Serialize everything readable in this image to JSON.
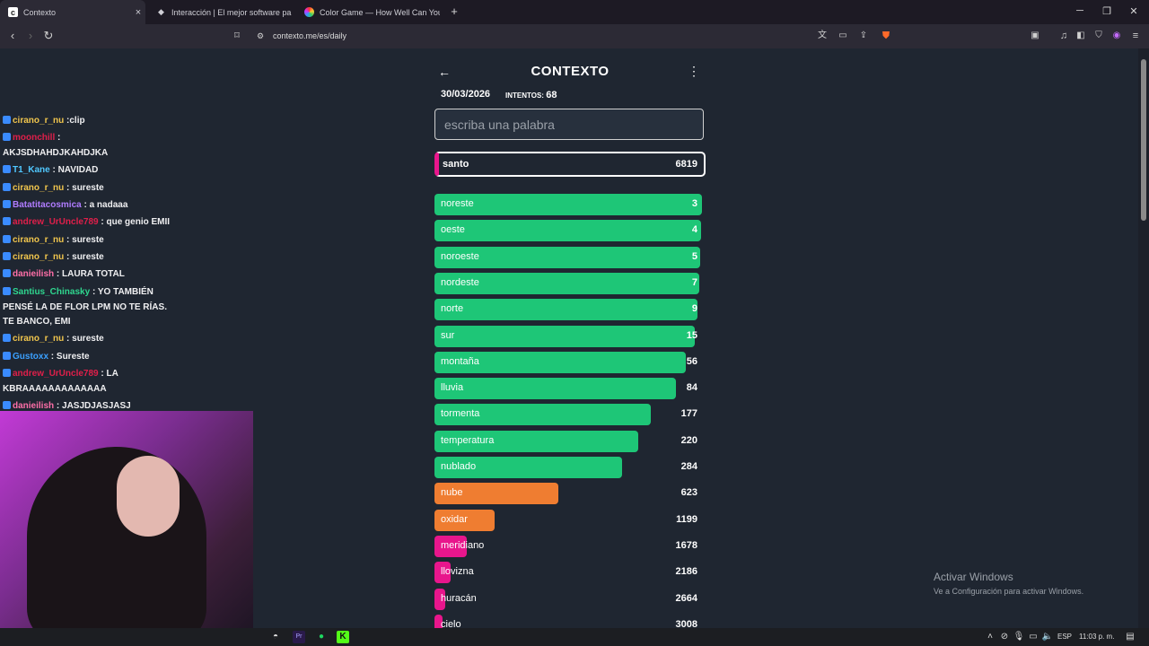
{
  "browser": {
    "tabs": [
      {
        "title": "Contexto",
        "icon": "contexto-favicon"
      },
      {
        "title": "Interacción | El mejor software pa",
        "icon": "interaction-favicon"
      },
      {
        "title": "Color Game — How Well Can You Re",
        "icon": "colorgame-favicon"
      }
    ],
    "new_tab": "+",
    "url": "contexto.me/es/daily",
    "window": {
      "minimize": "─",
      "restore": "❐",
      "close": "✕"
    }
  },
  "chat": {
    "messages": [
      {
        "user": "cirano_r_nu",
        "color": "#f0c54d",
        "text": ":clip"
      },
      {
        "user": "moonchill",
        "color": "#e01f4a",
        "text": ":"
      },
      {
        "user": "",
        "color": "#ffffff",
        "text": "AKJSDHAHDJKAHDJKA"
      },
      {
        "user": "T1_Kane",
        "color": "#50c8ff",
        "text": ": NAVIDAD"
      },
      {
        "user": "cirano_r_nu",
        "color": "#f0c54d",
        "text": ": sureste"
      },
      {
        "user": "Batatitacosmica",
        "color": "#b07cff",
        "text": ": a nadaaa"
      },
      {
        "user": "andrew_UrUncle789",
        "color": "#e01f4a",
        "text": ": que genio EMII"
      },
      {
        "user": "cirano_r_nu",
        "color": "#f0c54d",
        "text": ": sureste"
      },
      {
        "user": "cirano_r_nu",
        "color": "#f0c54d",
        "text": ": sureste"
      },
      {
        "user": "danieilish",
        "color": "#ff6fa8",
        "text": ": LAURA TOTAL"
      },
      {
        "user": "Santius_Chinasky",
        "color": "#2fd68f",
        "text": ": YO TAMBIÉN"
      },
      {
        "user": "",
        "color": "#ffffff",
        "text": "PENSÉ LA DE FLOR LPM NO TE RÍAS."
      },
      {
        "user": "",
        "color": "#ffffff",
        "text": "TE BANCO, EMI"
      },
      {
        "user": "cirano_r_nu",
        "color": "#f0c54d",
        "text": ": sureste"
      },
      {
        "user": "Gustoxx",
        "color": "#3ba0ff",
        "text": ": Sureste"
      },
      {
        "user": "andrew_UrUncle789",
        "color": "#e01f4a",
        "text": ": LA"
      },
      {
        "user": "",
        "color": "#ffffff",
        "text": "KBRAAAAAAAAAAAAA"
      },
      {
        "user": "danieilish",
        "color": "#ff6fa8",
        "text": ": JASJDJASJASJ"
      }
    ]
  },
  "game": {
    "title": "CONTEXTO",
    "back_icon": "←",
    "menu_icon": "⋮",
    "date": "30/03/2026",
    "tries_label": "INTENTOS:",
    "tries": "68",
    "input_placeholder": "escriba una palabra",
    "current": {
      "word": "santo",
      "rank": "6819"
    },
    "guesses": [
      {
        "word": "noreste",
        "rank": "3",
        "score": 0.995,
        "color": "#1ec677"
      },
      {
        "word": "oeste",
        "rank": "4",
        "score": 0.993,
        "color": "#1ec677"
      },
      {
        "word": "noroeste",
        "rank": "5",
        "score": 0.99,
        "color": "#1ec677"
      },
      {
        "word": "nordeste",
        "rank": "7",
        "score": 0.985,
        "color": "#1ec677"
      },
      {
        "word": "norte",
        "rank": "9",
        "score": 0.98,
        "color": "#1ec677"
      },
      {
        "word": "sur",
        "rank": "15",
        "score": 0.97,
        "color": "#1ec677"
      },
      {
        "word": "montaña",
        "rank": "56",
        "score": 0.935,
        "color": "#1ec677"
      },
      {
        "word": "lluvia",
        "rank": "84",
        "score": 0.9,
        "color": "#1ec677"
      },
      {
        "word": "tormenta",
        "rank": "177",
        "score": 0.805,
        "color": "#1ec677"
      },
      {
        "word": "temperatura",
        "rank": "220",
        "score": 0.76,
        "color": "#1ec677"
      },
      {
        "word": "nublado",
        "rank": "284",
        "score": 0.7,
        "color": "#1ec677"
      },
      {
        "word": "nube",
        "rank": "623",
        "score": 0.46,
        "color": "#ef7d31"
      },
      {
        "word": "oxidar",
        "rank": "1199",
        "score": 0.225,
        "color": "#ef7d31"
      },
      {
        "word": "meridiano",
        "rank": "1678",
        "score": 0.12,
        "color": "#e8168c"
      },
      {
        "word": "llovizna",
        "rank": "2186",
        "score": 0.06,
        "color": "#e8168c"
      },
      {
        "word": "huracán",
        "rank": "2664",
        "score": 0.04,
        "color": "#e8168c"
      },
      {
        "word": "cielo",
        "rank": "3008",
        "score": 0.03,
        "color": "#e8168c"
      }
    ]
  },
  "windows": {
    "activate_title": "Activar Windows",
    "activate_text": "Ve a Configuración para activar Windows.",
    "lang": "ESP",
    "time": "11:03 p. m."
  }
}
